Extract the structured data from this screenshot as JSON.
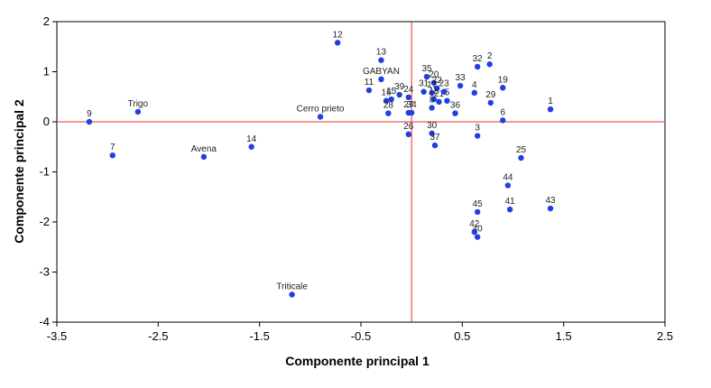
{
  "chart_data": {
    "type": "scatter",
    "xlabel": "Componente principal 1",
    "ylabel": "Componente principal 2",
    "xlim": [
      -3.5,
      2.5
    ],
    "ylim": [
      -4,
      2
    ],
    "x_ticks": [
      -3.5,
      -2.5,
      -1.5,
      -0.5,
      0.5,
      1.5,
      2.5
    ],
    "x_tick_labels": [
      "-3.5",
      "-2.5",
      "-1.5",
      "-0.5",
      "0.5",
      "1.5",
      "2.5"
    ],
    "y_ticks": [
      -4,
      -3,
      -2,
      -1,
      0,
      1,
      2
    ],
    "y_tick_labels": [
      "-4",
      "-3",
      "-2",
      "-1",
      "0",
      "1",
      "2"
    ],
    "reference_lines": {
      "x": 0,
      "y": 0,
      "color": "#e8302c"
    },
    "grid": false,
    "point_color": "#1f3fe0",
    "points": [
      {
        "label": "9",
        "x": -3.18,
        "y": 0.0
      },
      {
        "label": "Trigo",
        "x": -2.7,
        "y": 0.2
      },
      {
        "label": "7",
        "x": -2.95,
        "y": -0.67
      },
      {
        "label": "Avena",
        "x": -2.05,
        "y": -0.7
      },
      {
        "label": "14",
        "x": -1.58,
        "y": -0.5
      },
      {
        "label": "Triticale",
        "x": -1.18,
        "y": -3.45
      },
      {
        "label": "Cerro prieto",
        "x": -0.9,
        "y": 0.1
      },
      {
        "label": "12",
        "x": -0.73,
        "y": 1.58
      },
      {
        "label": "13",
        "x": -0.3,
        "y": 1.23
      },
      {
        "label": "GABYAN",
        "x": -0.3,
        "y": 0.85
      },
      {
        "label": "11",
        "x": -0.42,
        "y": 0.63
      },
      {
        "label": "16",
        "x": -0.25,
        "y": 0.42
      },
      {
        "label": "15",
        "x": -0.2,
        "y": 0.45
      },
      {
        "label": "39",
        "x": -0.12,
        "y": 0.54
      },
      {
        "label": "28",
        "x": -0.23,
        "y": 0.17
      },
      {
        "label": "24",
        "x": -0.03,
        "y": 0.49
      },
      {
        "label": "27",
        "x": -0.03,
        "y": 0.18
      },
      {
        "label": "34",
        "x": 0.0,
        "y": 0.18
      },
      {
        "label": "26",
        "x": -0.03,
        "y": -0.25
      },
      {
        "label": "35",
        "x": 0.15,
        "y": 0.9
      },
      {
        "label": "20",
        "x": 0.22,
        "y": 0.78
      },
      {
        "label": "22",
        "x": 0.25,
        "y": 0.67
      },
      {
        "label": "31",
        "x": 0.12,
        "y": 0.6
      },
      {
        "label": "17",
        "x": 0.2,
        "y": 0.58
      },
      {
        "label": "18",
        "x": 0.22,
        "y": 0.45
      },
      {
        "label": "21",
        "x": 0.27,
        "y": 0.4
      },
      {
        "label": "5",
        "x": 0.35,
        "y": 0.42
      },
      {
        "label": "8",
        "x": 0.2,
        "y": 0.28
      },
      {
        "label": "23",
        "x": 0.32,
        "y": 0.6
      },
      {
        "label": "33",
        "x": 0.48,
        "y": 0.72
      },
      {
        "label": "36",
        "x": 0.43,
        "y": 0.17
      },
      {
        "label": "30",
        "x": 0.2,
        "y": -0.23
      },
      {
        "label": "37",
        "x": 0.23,
        "y": -0.47
      },
      {
        "label": "32",
        "x": 0.65,
        "y": 1.1
      },
      {
        "label": "2",
        "x": 0.77,
        "y": 1.15
      },
      {
        "label": "4",
        "x": 0.62,
        "y": 0.58
      },
      {
        "label": "29",
        "x": 0.78,
        "y": 0.38
      },
      {
        "label": "19",
        "x": 0.9,
        "y": 0.68
      },
      {
        "label": "6",
        "x": 0.9,
        "y": 0.03
      },
      {
        "label": "1",
        "x": 1.37,
        "y": 0.25
      },
      {
        "label": "3",
        "x": 0.65,
        "y": -0.28
      },
      {
        "label": "25",
        "x": 1.08,
        "y": -0.72
      },
      {
        "label": "44",
        "x": 0.95,
        "y": -1.27
      },
      {
        "label": "45",
        "x": 0.65,
        "y": -1.8
      },
      {
        "label": "41",
        "x": 0.97,
        "y": -1.75
      },
      {
        "label": "43",
        "x": 1.37,
        "y": -1.73
      },
      {
        "label": "42",
        "x": 0.62,
        "y": -2.2
      },
      {
        "label": "40",
        "x": 0.65,
        "y": -2.3
      }
    ]
  }
}
